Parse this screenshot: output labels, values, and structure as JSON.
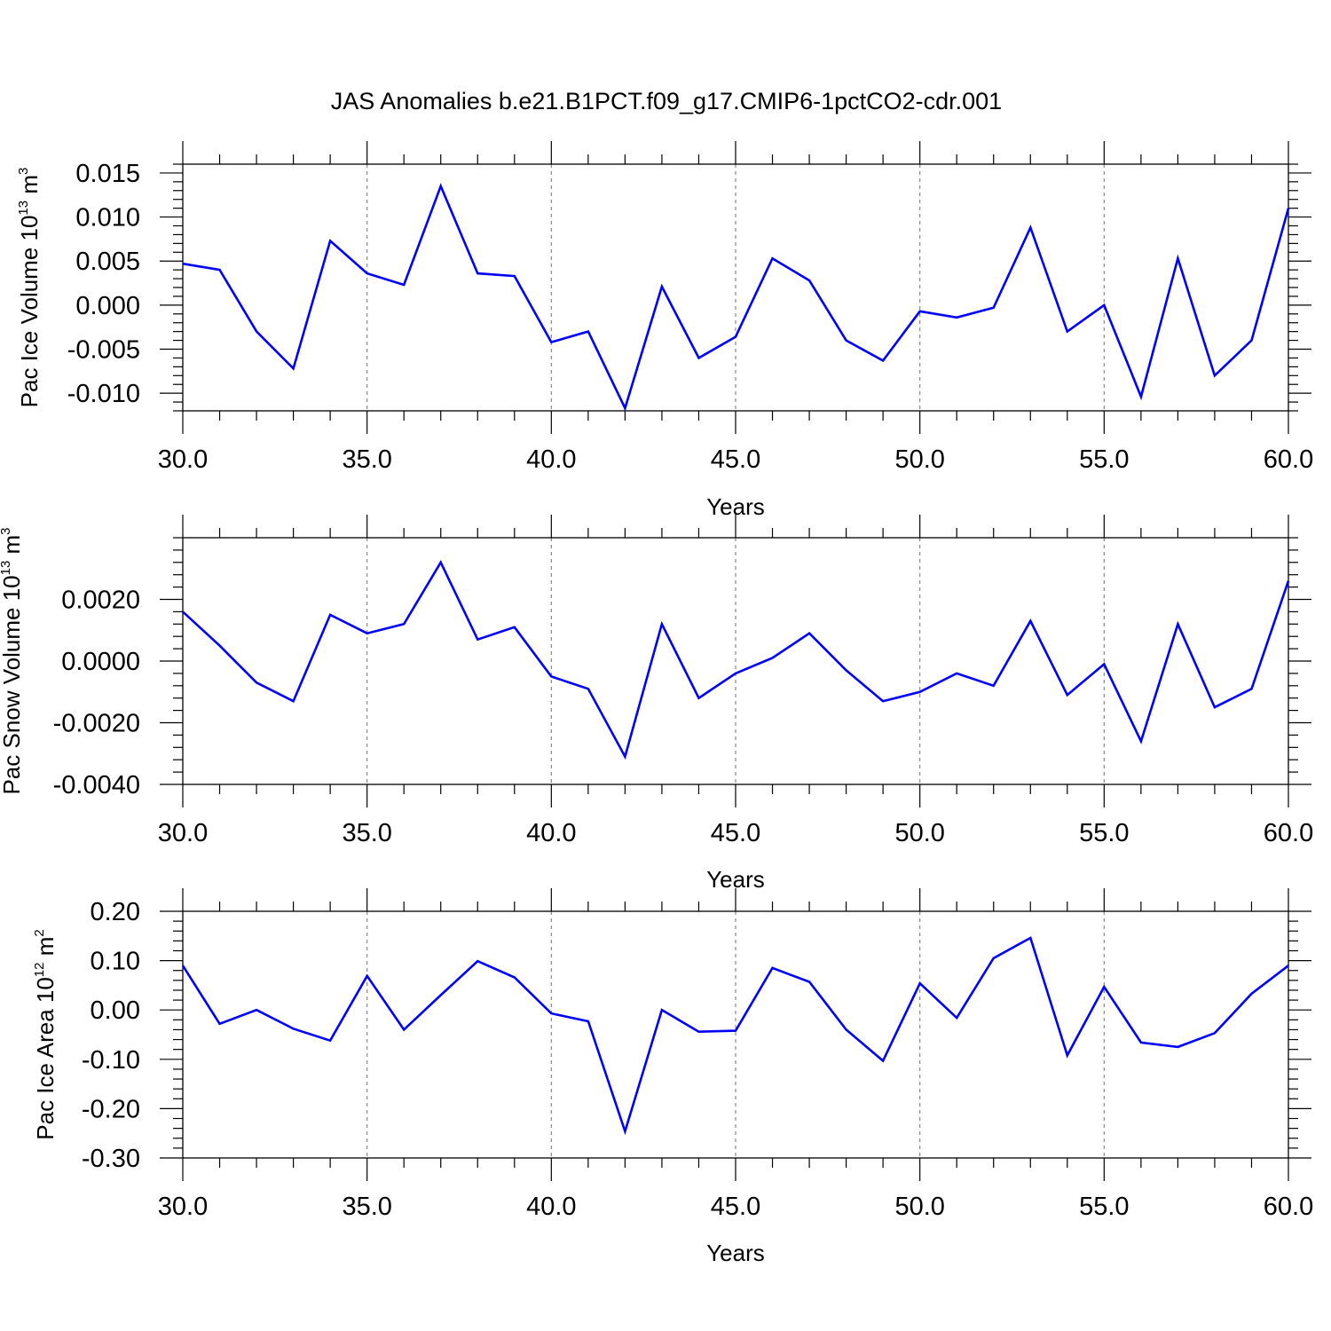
{
  "figure": {
    "title": "JAS Anomalies b.e21.B1PCT.f09_g17.CMIP6-1pctCO2-cdr.001"
  },
  "chart_data": [
    {
      "type": "line",
      "xlabel": "Years",
      "ylabel": {
        "text": "Pac Ice Volume 10",
        "sup": "13",
        "unit": " m",
        "unit_sup": "3"
      },
      "xlim": [
        30,
        60
      ],
      "ylim": [
        -0.012,
        0.016
      ],
      "xticks": [
        30,
        35,
        40,
        45,
        50,
        55,
        60
      ],
      "xtick_labels": [
        "30.0",
        "35.0",
        "40.0",
        "45.0",
        "50.0",
        "55.0",
        "60.0"
      ],
      "yticks": [
        -0.01,
        -0.005,
        0.0,
        0.005,
        0.01,
        0.015
      ],
      "ytick_labels": [
        "-0.010",
        "-0.005",
        "0.000",
        "0.005",
        "0.010",
        "0.015"
      ],
      "grid": "vertical dashed at major x ticks",
      "color": "#0000ff",
      "x": [
        30,
        31,
        32,
        33,
        34,
        35,
        36,
        37,
        38,
        39,
        40,
        41,
        42,
        43,
        44,
        45,
        46,
        47,
        48,
        49,
        50,
        51,
        52,
        53,
        54,
        55,
        56,
        57,
        58,
        59,
        60
      ],
      "y": [
        0.0047,
        0.004,
        -0.003,
        -0.0072,
        0.0073,
        0.0036,
        0.0023,
        0.0135,
        0.0036,
        0.0033,
        -0.0042,
        -0.003,
        -0.0117,
        0.0021,
        -0.006,
        -0.0036,
        0.0053,
        0.0028,
        -0.004,
        -0.0063,
        -0.0007,
        -0.0014,
        -0.0003,
        0.0088,
        -0.003,
        0.0,
        -0.0104,
        0.0053,
        -0.008,
        -0.004,
        0.011
      ]
    },
    {
      "type": "line",
      "xlabel": "Years",
      "ylabel": {
        "text": "Pac Snow Volume 10",
        "sup": "13",
        "unit": " m",
        "unit_sup": "3"
      },
      "xlim": [
        30,
        60
      ],
      "ylim": [
        -0.004,
        0.004
      ],
      "xticks": [
        30,
        35,
        40,
        45,
        50,
        55,
        60
      ],
      "xtick_labels": [
        "30.0",
        "35.0",
        "40.0",
        "45.0",
        "50.0",
        "55.0",
        "60.0"
      ],
      "yticks": [
        -0.004,
        -0.002,
        0.0,
        0.002
      ],
      "ytick_labels": [
        "-0.0040",
        "-0.0020",
        "0.0000",
        "0.0020"
      ],
      "grid": "vertical dashed at major x ticks",
      "color": "#0000ff",
      "x": [
        30,
        31,
        32,
        33,
        34,
        35,
        36,
        37,
        38,
        39,
        40,
        41,
        42,
        43,
        44,
        45,
        46,
        47,
        48,
        49,
        50,
        51,
        52,
        53,
        54,
        55,
        56,
        57,
        58,
        59,
        60
      ],
      "y": [
        0.0016,
        0.0005,
        -0.0007,
        -0.0013,
        0.0015,
        0.0009,
        0.0012,
        0.0032,
        0.0007,
        0.0011,
        -0.0005,
        -0.0009,
        -0.0031,
        0.0012,
        -0.0012,
        -0.0004,
        0.0001,
        0.0009,
        -0.0003,
        -0.0013,
        -0.001,
        -0.0004,
        -0.0008,
        0.0013,
        -0.0011,
        -0.0001,
        -0.0026,
        0.0012,
        -0.0015,
        -0.0009,
        0.0026
      ]
    },
    {
      "type": "line",
      "xlabel": "Years",
      "ylabel": {
        "text": "Pac Ice Area 10",
        "sup": "12",
        "unit": " m",
        "unit_sup": "2"
      },
      "xlim": [
        30,
        60
      ],
      "ylim": [
        -0.3,
        0.2
      ],
      "xticks": [
        30,
        35,
        40,
        45,
        50,
        55,
        60
      ],
      "xtick_labels": [
        "30.0",
        "35.0",
        "40.0",
        "45.0",
        "50.0",
        "55.0",
        "60.0"
      ],
      "yticks": [
        -0.3,
        -0.2,
        -0.1,
        0.0,
        0.1,
        0.2
      ],
      "ytick_labels": [
        "-0.30",
        "-0.20",
        "-0.10",
        "0.00",
        "0.10",
        "0.20"
      ],
      "grid": "vertical dashed at major x ticks",
      "color": "#0000ff",
      "x": [
        30,
        31,
        32,
        33,
        34,
        35,
        36,
        37,
        38,
        39,
        40,
        41,
        42,
        43,
        44,
        45,
        46,
        47,
        48,
        49,
        50,
        51,
        52,
        53,
        54,
        55,
        56,
        57,
        58,
        59,
        60
      ],
      "y": [
        0.09,
        -0.028,
        0.0,
        -0.038,
        -0.062,
        0.069,
        -0.04,
        0.03,
        0.099,
        0.066,
        -0.007,
        -0.023,
        -0.246,
        0.0,
        -0.044,
        -0.042,
        0.085,
        0.057,
        -0.04,
        -0.103,
        0.054,
        -0.016,
        0.105,
        0.146,
        -0.092,
        0.047,
        -0.066,
        -0.075,
        -0.047,
        0.033,
        0.09
      ]
    }
  ]
}
